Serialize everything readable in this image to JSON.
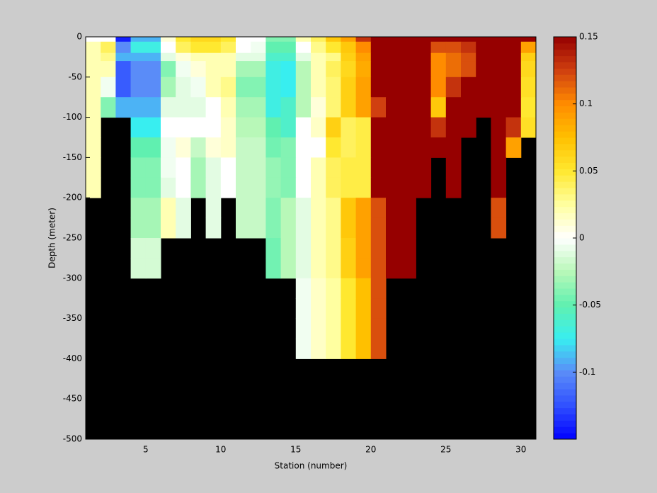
{
  "chart_data": {
    "type": "heatmap",
    "xlabel": "Station (number)",
    "ylabel": "Depth (meter)",
    "x": [
      1,
      2,
      3,
      4,
      5,
      6,
      7,
      8,
      9,
      10,
      11,
      12,
      13,
      14,
      15,
      16,
      17,
      18,
      19,
      20,
      21,
      22,
      23,
      24,
      25,
      26,
      27,
      28,
      29,
      30,
      31
    ],
    "y": [
      0,
      -6,
      -20,
      -30,
      -50,
      -75,
      -100,
      -125,
      -150,
      -175,
      -200,
      -225,
      -250,
      -275,
      -300,
      -325,
      -350,
      -375,
      -400
    ],
    "values": [
      [
        0,
        0,
        -0.14,
        -0.09,
        -0.09,
        0.01,
        0.05,
        0.06,
        0.06,
        0.05,
        0,
        0,
        -0.04,
        -0.04,
        0.02,
        0.04,
        0.07,
        0.09,
        0.13,
        0.15,
        0.15,
        0.15,
        0.15,
        0.15,
        0.15,
        0.15,
        0.15,
        0.15,
        0.15,
        0.15
      ],
      [
        0.02,
        0.04,
        -0.1,
        -0.07,
        -0.07,
        0,
        0.04,
        0.05,
        0.05,
        0.04,
        0,
        -0.005,
        -0.05,
        -0.05,
        0,
        0.03,
        0.05,
        0.07,
        0.1,
        0.15,
        0.15,
        0.15,
        0.15,
        0.12,
        0.12,
        0.13,
        0.15,
        0.15,
        0.15,
        0.09
      ],
      [
        0.02,
        0.03,
        -0.09,
        -0.09,
        -0.09,
        -0.01,
        0.01,
        0.02,
        0.02,
        0.02,
        -0.01,
        -0.01,
        -0.06,
        -0.06,
        -0.01,
        0.02,
        0.03,
        0.065,
        0.09,
        0.15,
        0.15,
        0.15,
        0.15,
        0.1,
        0.11,
        0.12,
        0.15,
        0.15,
        0.15,
        0.065
      ],
      [
        0.02,
        0.02,
        -0.12,
        -0.1,
        -0.1,
        -0.04,
        -0.005,
        0.01,
        0.02,
        0.02,
        -0.03,
        -0.03,
        -0.07,
        -0.075,
        -0.025,
        0.02,
        0.04,
        0.06,
        0.085,
        0.15,
        0.15,
        0.15,
        0.15,
        0.1,
        0.11,
        0.12,
        0.15,
        0.15,
        0.15,
        0.06
      ],
      [
        0.02,
        -0.005,
        -0.12,
        -0.1,
        -0.1,
        -0.03,
        -0.01,
        -0.005,
        0.02,
        0.03,
        -0.04,
        -0.04,
        -0.07,
        -0.075,
        -0.025,
        0.02,
        0.035,
        0.065,
        0.09,
        0.15,
        0.15,
        0.15,
        0.15,
        0.1,
        0.13,
        0.15,
        0.15,
        0.15,
        0.15,
        0.055
      ],
      [
        0.02,
        -0.04,
        -0.09,
        -0.09,
        -0.09,
        -0.01,
        -0.01,
        -0.01,
        0,
        0.02,
        -0.03,
        -0.03,
        -0.07,
        -0.06,
        -0.025,
        0.01,
        0.035,
        0.065,
        0.09,
        0.125,
        0.15,
        0.15,
        0.15,
        0.07,
        0.15,
        0.15,
        0.15,
        0.15,
        0.15,
        0.05
      ],
      [
        0.02,
        null,
        null,
        -0.075,
        -0.075,
        0,
        0,
        0,
        0,
        0.015,
        -0.025,
        -0.025,
        -0.05,
        -0.06,
        0,
        0.015,
        0.065,
        0.04,
        0.045,
        0.15,
        0.15,
        0.15,
        0.15,
        0.13,
        0.15,
        0.15,
        null,
        0.15,
        0.13,
        0.055
      ],
      [
        0.02,
        null,
        null,
        -0.05,
        -0.05,
        -0.005,
        0.01,
        -0.02,
        0.01,
        0.015,
        -0.02,
        -0.02,
        -0.045,
        -0.04,
        0,
        0,
        0.05,
        0.04,
        0.045,
        0.15,
        0.15,
        0.15,
        0.15,
        0.15,
        0.15,
        null,
        null,
        0.15,
        0.09,
        null
      ],
      [
        0.02,
        null,
        null,
        -0.04,
        -0.04,
        -0.005,
        0,
        -0.03,
        -0.01,
        0,
        -0.02,
        -0.02,
        -0.035,
        -0.04,
        0,
        0.02,
        0.04,
        0.045,
        0.045,
        0.15,
        0.15,
        0.15,
        0.15,
        null,
        0.15,
        null,
        null,
        0.15,
        null,
        null
      ],
      [
        0.02,
        null,
        null,
        -0.04,
        -0.04,
        -0.01,
        0,
        -0.03,
        -0.01,
        0,
        -0.02,
        -0.02,
        -0.035,
        -0.04,
        0,
        0.02,
        0.04,
        0.045,
        0.045,
        0.15,
        0.15,
        0.15,
        0.15,
        null,
        0.15,
        null,
        null,
        0.15,
        null,
        null
      ],
      [
        null,
        null,
        null,
        -0.03,
        -0.03,
        0.02,
        -0.01,
        null,
        -0.01,
        null,
        -0.02,
        -0.02,
        -0.04,
        -0.025,
        -0.01,
        0.02,
        0.03,
        0.07,
        0.09,
        0.12,
        0.15,
        0.15,
        null,
        null,
        null,
        null,
        null,
        0.12,
        null,
        null
      ],
      [
        null,
        null,
        null,
        -0.03,
        -0.03,
        0.02,
        -0.01,
        null,
        -0.01,
        null,
        -0.02,
        -0.02,
        -0.04,
        -0.025,
        -0.01,
        0.02,
        0.03,
        0.07,
        0.09,
        0.12,
        0.15,
        0.15,
        null,
        null,
        null,
        null,
        null,
        0.12,
        null,
        null
      ],
      [
        null,
        null,
        null,
        -0.015,
        -0.015,
        null,
        null,
        null,
        null,
        null,
        null,
        null,
        -0.045,
        -0.025,
        -0.01,
        0.02,
        0.03,
        0.065,
        0.09,
        0.12,
        0.15,
        0.15,
        null,
        null,
        null,
        null,
        null,
        null,
        null,
        null
      ],
      [
        null,
        null,
        null,
        -0.015,
        -0.015,
        null,
        null,
        null,
        null,
        null,
        null,
        null,
        -0.045,
        -0.025,
        -0.01,
        0.02,
        0.03,
        0.065,
        0.09,
        0.12,
        0.15,
        0.15,
        null,
        null,
        null,
        null,
        null,
        null,
        null,
        null
      ],
      [
        null,
        null,
        null,
        null,
        null,
        null,
        null,
        null,
        null,
        null,
        null,
        null,
        null,
        null,
        -0.005,
        0.015,
        0.025,
        0.05,
        0.075,
        0.12,
        null,
        null,
        null,
        null,
        null,
        null,
        null,
        null,
        null,
        null
      ],
      [
        null,
        null,
        null,
        null,
        null,
        null,
        null,
        null,
        null,
        null,
        null,
        null,
        null,
        null,
        -0.005,
        0.015,
        0.025,
        0.05,
        0.075,
        0.12,
        null,
        null,
        null,
        null,
        null,
        null,
        null,
        null,
        null,
        null
      ],
      [
        null,
        null,
        null,
        null,
        null,
        null,
        null,
        null,
        null,
        null,
        null,
        null,
        null,
        null,
        -0.005,
        0.015,
        0.025,
        0.05,
        0.075,
        0.12,
        null,
        null,
        null,
        null,
        null,
        null,
        null,
        null,
        null,
        null
      ],
      [
        null,
        null,
        null,
        null,
        null,
        null,
        null,
        null,
        null,
        null,
        null,
        null,
        null,
        null,
        -0.005,
        0.015,
        0.025,
        0.05,
        0.075,
        0.12,
        null,
        null,
        null,
        null,
        null,
        null,
        null,
        null,
        null,
        null
      ]
    ],
    "xlim": [
      1,
      31
    ],
    "xticks": [
      5,
      10,
      15,
      20,
      25,
      30
    ],
    "ylim": [
      -500,
      0
    ],
    "yticks": [
      0,
      -50,
      -100,
      -150,
      -200,
      -250,
      -300,
      -350,
      -400,
      -450,
      -500
    ],
    "clim": [
      -0.15,
      0.15
    ],
    "cticks": [
      0.15,
      0.1,
      0.05,
      0,
      -0.05,
      -0.1
    ],
    "colormap": [
      "#0000ff",
      "#3050ff",
      "#5a8cf8",
      "#38eef0",
      "#60f0b0",
      "#b8f8b8",
      "#ffffff",
      "#ffffa0",
      "#ffe830",
      "#ffc000",
      "#ff8c00",
      "#d04010",
      "#960000"
    ],
    "missing_color": "#000000"
  }
}
